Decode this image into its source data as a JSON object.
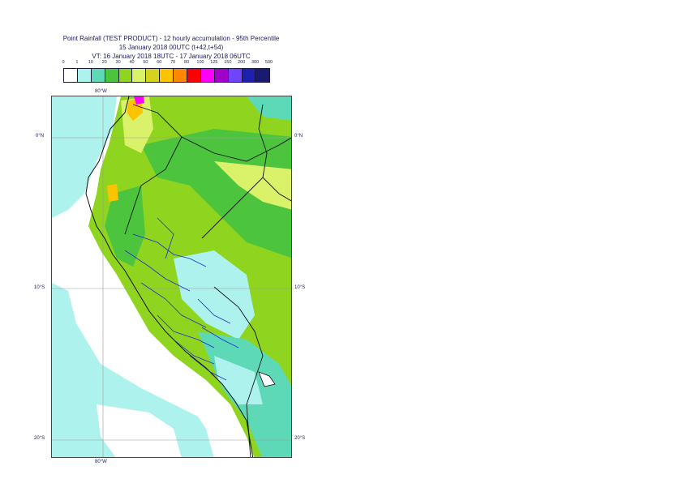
{
  "title": {
    "line1": "Point Rainfall (TEST PRODUCT) - 12 hourly accumulation - 95th Percentile",
    "line2": "15 January 2018 00UTC (t+42,t+54)",
    "line3": "VT: 16 January 2018 18UTC - 17 January 2018 06UTC"
  },
  "legend": {
    "thresholds": [
      "0",
      "1",
      "10",
      "20",
      "30",
      "40",
      "50",
      "60",
      "70",
      "80",
      "100",
      "125",
      "150",
      "200",
      "300",
      "500"
    ],
    "colors": [
      "#ffffff",
      "#aef2ee",
      "#5dd9b7",
      "#4cc43e",
      "#8fd41e",
      "#daf26a",
      "#d4d420",
      "#fcc400",
      "#ff8800",
      "#ff0000",
      "#ff00ff",
      "#a000c8",
      "#7043ff",
      "#2020b0",
      "#1a1a70"
    ]
  },
  "map": {
    "longitude_top": "80°W",
    "longitude_bottom": "80°W",
    "lat_0_left": "0°N",
    "lat_0_right": "0°N",
    "lat_10_left": "10°S",
    "lat_10_right": "10°S",
    "lat_20_left": "20°S",
    "lat_20_right": "20°S"
  }
}
